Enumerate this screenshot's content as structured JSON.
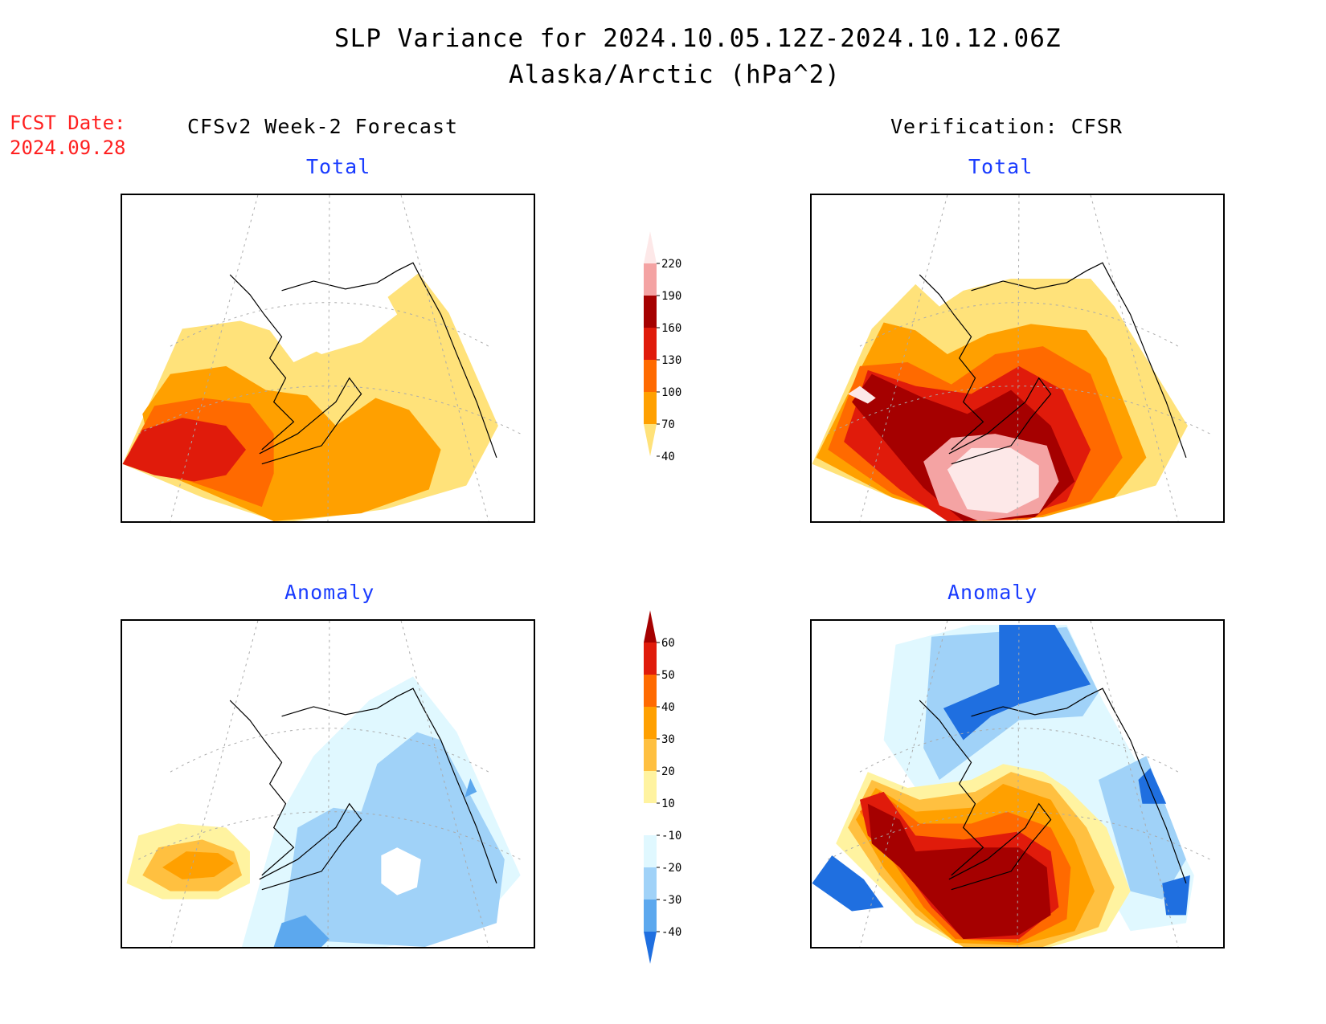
{
  "header": {
    "title_line1": "SLP Variance for 2024.10.05.12Z-2024.10.12.06Z",
    "title_line2": "Alaska/Arctic (hPa^2)"
  },
  "fcst_date": {
    "label": "FCST Date:",
    "value": "2024.09.28"
  },
  "columns": {
    "left": "CFSv2 Week-2 Forecast",
    "right": "Verification: CFSR"
  },
  "panels": {
    "top_left": "Total",
    "top_right": "Total",
    "bottom_left": "Anomaly",
    "bottom_right": "Anomaly"
  },
  "colorbars": {
    "total": {
      "levels": [
        "220",
        "190",
        "160",
        "130",
        "100",
        "70",
        "40"
      ],
      "colors": [
        "#fde8e8",
        "#f4a3a3",
        "#a50000",
        "#e01b0b",
        "#ff6a00",
        "#ffa000",
        "#ffe27a"
      ]
    },
    "anomaly": {
      "levels": [
        "60",
        "50",
        "40",
        "30",
        "20",
        "10",
        "-10",
        "-20",
        "-30",
        "-40"
      ],
      "colors": [
        "#a50000",
        "#e01b0b",
        "#ff6a00",
        "#ffa000",
        "#ffc040",
        "#fff3a0",
        "#ffffff",
        "#e0f8ff",
        "#a0d2f8",
        "#5ca8ee",
        "#1f6fe0"
      ]
    }
  }
}
